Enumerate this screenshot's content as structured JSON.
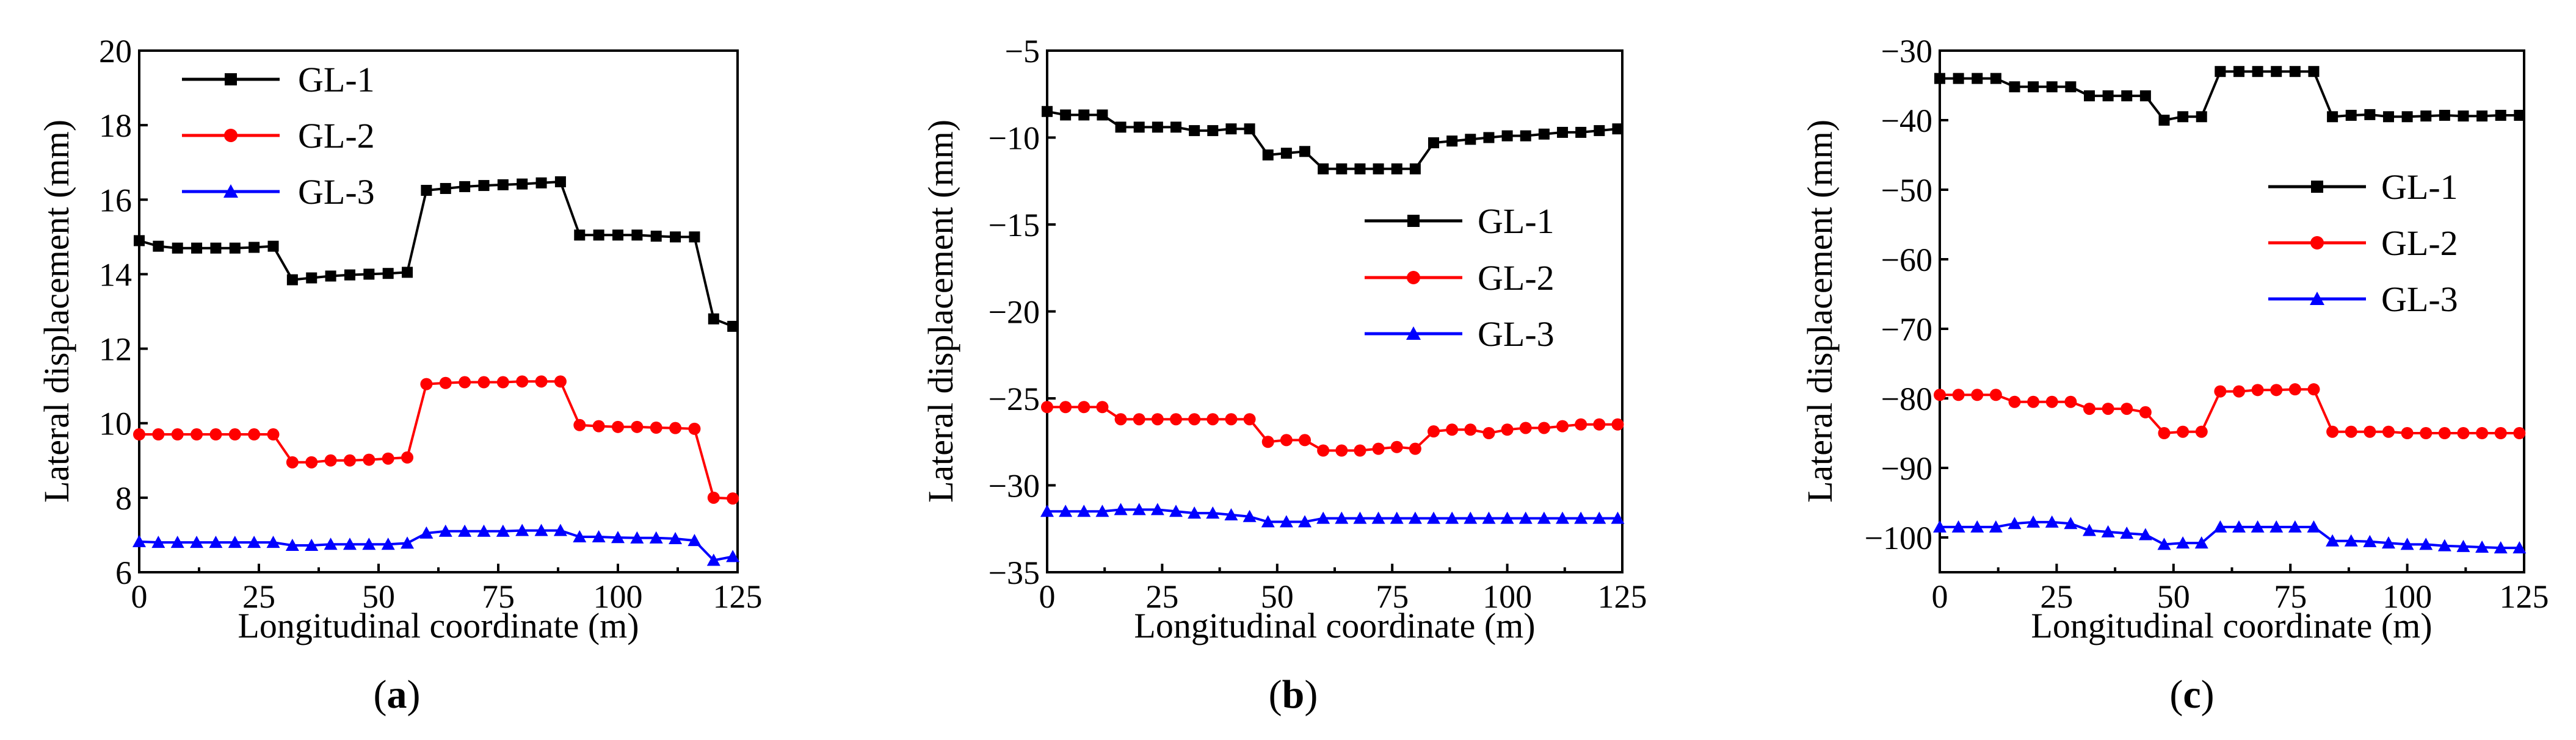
{
  "chart_data": [
    {
      "type": "line",
      "panel_label": "a",
      "xlabel": "Longitudinal coordinate (m)",
      "ylabel": "Lateral displacement (mm)",
      "xlim": [
        0,
        125
      ],
      "ylim": [
        6,
        20
      ],
      "xticks": [
        0,
        25,
        50,
        75,
        100,
        125
      ],
      "yticks": [
        6,
        8,
        10,
        12,
        14,
        16,
        18,
        20
      ],
      "legend_position": "top-left",
      "x": [
        0,
        4,
        8,
        12,
        16,
        20,
        24,
        28,
        32,
        36,
        40,
        44,
        48,
        52,
        56,
        60,
        64,
        68,
        72,
        76,
        80,
        84,
        88,
        92,
        96,
        100,
        104,
        108,
        112,
        116,
        120,
        124
      ],
      "series": [
        {
          "name": "GL-1",
          "color": "#000000",
          "marker": "square",
          "values": [
            14.9,
            14.75,
            14.7,
            14.7,
            14.7,
            14.7,
            14.72,
            14.75,
            13.85,
            13.9,
            13.95,
            13.98,
            14.0,
            14.02,
            14.05,
            16.25,
            16.3,
            16.35,
            16.38,
            16.4,
            16.42,
            16.45,
            16.48,
            15.05,
            15.05,
            15.05,
            15.05,
            15.02,
            15.0,
            15.0,
            12.8,
            12.6
          ]
        },
        {
          "name": "GL-2",
          "color": "#ff0000",
          "marker": "circle",
          "values": [
            9.7,
            9.7,
            9.7,
            9.7,
            9.7,
            9.7,
            9.7,
            9.7,
            8.95,
            8.95,
            9.0,
            9.0,
            9.02,
            9.05,
            9.08,
            11.05,
            11.08,
            11.1,
            11.1,
            11.1,
            11.12,
            11.12,
            11.12,
            9.95,
            9.92,
            9.9,
            9.9,
            9.88,
            9.87,
            9.85,
            8.0,
            7.98
          ]
        },
        {
          "name": "GL-3",
          "color": "#0000ff",
          "marker": "triangle",
          "values": [
            6.82,
            6.8,
            6.8,
            6.8,
            6.8,
            6.8,
            6.8,
            6.8,
            6.72,
            6.72,
            6.75,
            6.75,
            6.75,
            6.75,
            6.78,
            7.05,
            7.1,
            7.1,
            7.1,
            7.1,
            7.12,
            7.12,
            7.12,
            6.95,
            6.95,
            6.93,
            6.92,
            6.92,
            6.9,
            6.85,
            6.32,
            6.42
          ]
        }
      ]
    },
    {
      "type": "line",
      "panel_label": "b",
      "xlabel": "Longitudinal coordinate (m)",
      "ylabel": "Lateral displacement (mm)",
      "xlim": [
        0,
        125
      ],
      "ylim": [
        -35,
        -5
      ],
      "xticks": [
        0,
        25,
        50,
        75,
        100,
        125
      ],
      "yticks": [
        -35,
        -30,
        -25,
        -20,
        -15,
        -10,
        -5
      ],
      "legend_position": "center-right",
      "x": [
        0,
        4,
        8,
        12,
        16,
        20,
        24,
        28,
        32,
        36,
        40,
        44,
        48,
        52,
        56,
        60,
        64,
        68,
        72,
        76,
        80,
        84,
        88,
        92,
        96,
        100,
        104,
        108,
        112,
        116,
        120,
        124
      ],
      "series": [
        {
          "name": "GL-1",
          "color": "#000000",
          "marker": "square",
          "values": [
            -8.5,
            -8.7,
            -8.7,
            -8.7,
            -9.4,
            -9.4,
            -9.4,
            -9.4,
            -9.6,
            -9.6,
            -9.5,
            -9.5,
            -11.0,
            -10.9,
            -10.8,
            -11.8,
            -11.8,
            -11.8,
            -11.8,
            -11.8,
            -11.8,
            -10.3,
            -10.2,
            -10.1,
            -10.0,
            -9.9,
            -9.9,
            -9.8,
            -9.7,
            -9.7,
            -9.6,
            -9.5
          ]
        },
        {
          "name": "GL-2",
          "color": "#ff0000",
          "marker": "circle",
          "values": [
            -25.5,
            -25.5,
            -25.5,
            -25.5,
            -26.2,
            -26.2,
            -26.2,
            -26.2,
            -26.2,
            -26.2,
            -26.2,
            -26.2,
            -27.5,
            -27.4,
            -27.4,
            -28.0,
            -28.0,
            -28.0,
            -27.9,
            -27.8,
            -27.9,
            -26.9,
            -26.8,
            -26.8,
            -27.0,
            -26.8,
            -26.7,
            -26.7,
            -26.6,
            -26.5,
            -26.5,
            -26.5
          ]
        },
        {
          "name": "GL-3",
          "color": "#0000ff",
          "marker": "triangle",
          "values": [
            -31.5,
            -31.5,
            -31.5,
            -31.5,
            -31.4,
            -31.4,
            -31.4,
            -31.5,
            -31.6,
            -31.6,
            -31.7,
            -31.8,
            -32.1,
            -32.1,
            -32.1,
            -31.9,
            -31.9,
            -31.9,
            -31.9,
            -31.9,
            -31.9,
            -31.9,
            -31.9,
            -31.9,
            -31.9,
            -31.9,
            -31.9,
            -31.9,
            -31.9,
            -31.9,
            -31.9,
            -31.9
          ]
        }
      ]
    },
    {
      "type": "line",
      "panel_label": "c",
      "xlabel": "Longitudinal coordinate (m)",
      "ylabel": "Lateral displacement (mm)",
      "xlim": [
        0,
        125
      ],
      "ylim": [
        -105,
        -30
      ],
      "xticks": [
        0,
        25,
        50,
        75,
        100,
        125
      ],
      "yticks": [
        -100,
        -90,
        -80,
        -70,
        -60,
        -50,
        -40,
        -30
      ],
      "legend_position": "center-right",
      "x": [
        0,
        4,
        8,
        12,
        16,
        20,
        24,
        28,
        32,
        36,
        40,
        44,
        48,
        52,
        56,
        60,
        64,
        68,
        72,
        76,
        80,
        84,
        88,
        92,
        96,
        100,
        104,
        108,
        112,
        116,
        120,
        124
      ],
      "series": [
        {
          "name": "GL-1",
          "color": "#000000",
          "marker": "square",
          "values": [
            -34.0,
            -34.0,
            -34.0,
            -34.0,
            -35.2,
            -35.2,
            -35.2,
            -35.2,
            -36.5,
            -36.5,
            -36.5,
            -36.5,
            -40.0,
            -39.5,
            -39.5,
            -33.0,
            -33.0,
            -33.0,
            -33.0,
            -33.0,
            -33.0,
            -39.5,
            -39.3,
            -39.2,
            -39.5,
            -39.5,
            -39.4,
            -39.3,
            -39.4,
            -39.4,
            -39.3,
            -39.3
          ]
        },
        {
          "name": "GL-2",
          "color": "#ff0000",
          "marker": "circle",
          "values": [
            -79.5,
            -79.5,
            -79.5,
            -79.5,
            -80.5,
            -80.5,
            -80.5,
            -80.5,
            -81.5,
            -81.5,
            -81.5,
            -82.0,
            -85.0,
            -84.8,
            -84.8,
            -79.0,
            -79.0,
            -78.8,
            -78.8,
            -78.7,
            -78.7,
            -84.8,
            -84.8,
            -84.8,
            -84.8,
            -85.0,
            -85.0,
            -85.0,
            -85.0,
            -85.0,
            -85.0,
            -85.0
          ]
        },
        {
          "name": "GL-3",
          "color": "#0000ff",
          "marker": "triangle",
          "values": [
            -98.5,
            -98.5,
            -98.5,
            -98.5,
            -98.0,
            -97.8,
            -97.8,
            -98.0,
            -99.0,
            -99.2,
            -99.4,
            -99.6,
            -101.0,
            -100.8,
            -100.8,
            -98.5,
            -98.5,
            -98.5,
            -98.5,
            -98.5,
            -98.5,
            -100.5,
            -100.5,
            -100.6,
            -100.8,
            -101.0,
            -101.0,
            -101.2,
            -101.3,
            -101.4,
            -101.5,
            -101.5
          ]
        }
      ]
    }
  ]
}
